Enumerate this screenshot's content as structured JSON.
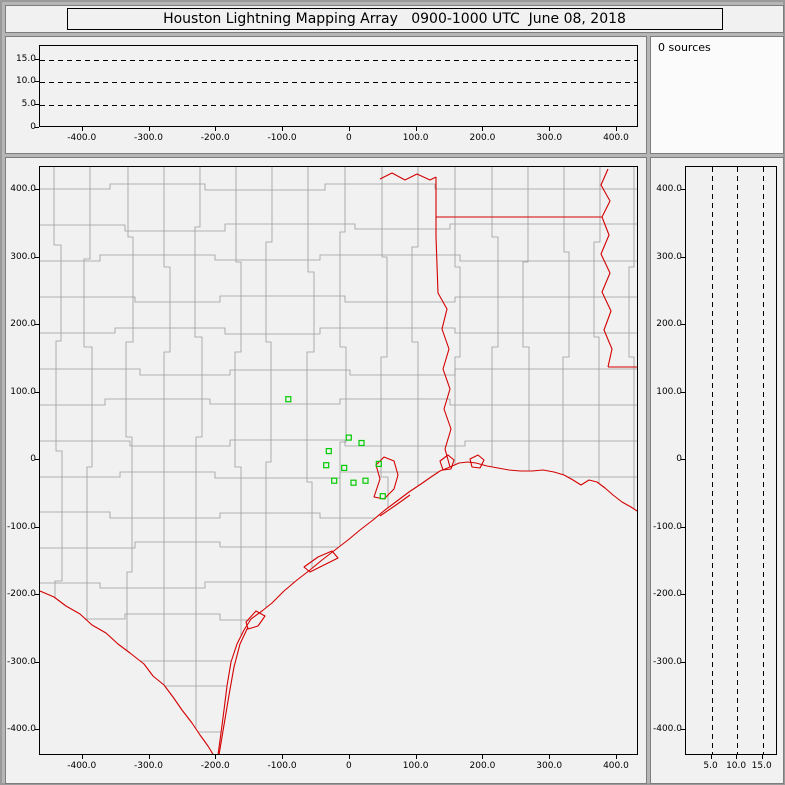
{
  "window": {
    "title": "Houston Lightning Mapping Array   0900-1000 UTC  June 08, 2018"
  },
  "sources_panel": {
    "label": "0 sources"
  },
  "colors": {
    "frame_bg": "#b6b6b6",
    "panel_bg": "#f1f1f1",
    "panel_border": "#7d7d7d",
    "plot_border": "#000000",
    "sources_bg": "#fbfbfb",
    "county_line": "#9c9c9c",
    "state_border": "#d40000",
    "station": "#00cc00",
    "grid_dash": "#000000",
    "tick_text": "#000000"
  },
  "chart_data": {
    "type": "scatter",
    "title": "Houston Lightning Mapping Array 0900-1000 UTC June 08, 2018",
    "time_range_utc": "0900-1000 UTC",
    "date": "June 08, 2018",
    "source_count": 0,
    "legend": "0 sources",
    "notes": "Lightning mapping array display: no lightning sources plotted; green squares are LMA station locations; map shows Texas/Louisiana county boundaries (gray) and state borders plus coastline (red). Axes in km relative to network center.",
    "panels": [
      {
        "dom": "top",
        "role": "altitude-vs-east-west-distance",
        "x_range": [
          -464,
          433
        ],
        "y_range": [
          0,
          18
        ],
        "x_ticks": [
          {
            "v": -400,
            "t": "-400.0"
          },
          {
            "v": -300,
            "t": "-300.0"
          },
          {
            "v": -200,
            "t": "-200.0"
          },
          {
            "v": -100,
            "t": "-100.0"
          },
          {
            "v": 0,
            "t": "0"
          },
          {
            "v": 100,
            "t": "100.0"
          },
          {
            "v": 200,
            "t": "200.0"
          },
          {
            "v": 300,
            "t": "300.0"
          },
          {
            "v": 400,
            "t": "400.0"
          }
        ],
        "y_ticks": [
          {
            "v": 0,
            "t": "0"
          },
          {
            "v": 5,
            "t": "5.0"
          },
          {
            "v": 10,
            "t": "10.0"
          },
          {
            "v": 15,
            "t": "15.0"
          }
        ],
        "grid_y": [
          5,
          10,
          15
        ],
        "points": []
      },
      {
        "dom": "map",
        "role": "plan-view-map",
        "x_range": [
          -464,
          433
        ],
        "y_range": [
          -438,
          434
        ],
        "x_ticks": [
          {
            "v": -400,
            "t": "-400.0"
          },
          {
            "v": -300,
            "t": "-300.0"
          },
          {
            "v": -200,
            "t": "-200.0"
          },
          {
            "v": -100,
            "t": "-100.0"
          },
          {
            "v": 0,
            "t": "0"
          },
          {
            "v": 100,
            "t": "100.0"
          },
          {
            "v": 200,
            "t": "200.0"
          },
          {
            "v": 300,
            "t": "300.0"
          },
          {
            "v": 400,
            "t": "400.0"
          }
        ],
        "y_ticks": [
          {
            "v": 400,
            "t": "400.0"
          },
          {
            "v": 300,
            "t": "300.0"
          },
          {
            "v": 200,
            "t": "200.0"
          },
          {
            "v": 100,
            "t": "100.0"
          },
          {
            "v": 0,
            "t": "0"
          },
          {
            "v": -100,
            "t": "-100.0"
          },
          {
            "v": -200,
            "t": "-200.0"
          },
          {
            "v": -300,
            "t": "-300.0"
          },
          {
            "v": -400,
            "t": "-400.0"
          }
        ],
        "points": []
      },
      {
        "dom": "right",
        "role": "north-south-distance-vs-altitude",
        "x_range": [
          0,
          18
        ],
        "y_range": [
          -438,
          434
        ],
        "x_ticks": [
          {
            "v": 5,
            "t": "5.0"
          },
          {
            "v": 10,
            "t": "10.0"
          },
          {
            "v": 15,
            "t": "15.0"
          }
        ],
        "y_ticks": [
          {
            "v": 400,
            "t": "400.0"
          },
          {
            "v": 300,
            "t": "300.0"
          },
          {
            "v": 200,
            "t": "200.0"
          },
          {
            "v": 100,
            "t": "100.0"
          },
          {
            "v": 0,
            "t": "0"
          },
          {
            "v": -100,
            "t": "-100.0"
          },
          {
            "v": -200,
            "t": "-200.0"
          },
          {
            "v": -300,
            "t": "-300.0"
          },
          {
            "v": -400,
            "t": "-400.0"
          }
        ],
        "grid_x": [
          5,
          10,
          15
        ],
        "points": []
      }
    ],
    "stations_km": [
      [
        -91,
        89
      ],
      [
        0,
        32
      ],
      [
        19,
        24
      ],
      [
        -30,
        12
      ],
      [
        -34,
        -9
      ],
      [
        -7,
        -13
      ],
      [
        45,
        -7
      ],
      [
        -22,
        -32
      ],
      [
        7,
        -35
      ],
      [
        25,
        -32
      ],
      [
        51,
        -55
      ]
    ]
  }
}
